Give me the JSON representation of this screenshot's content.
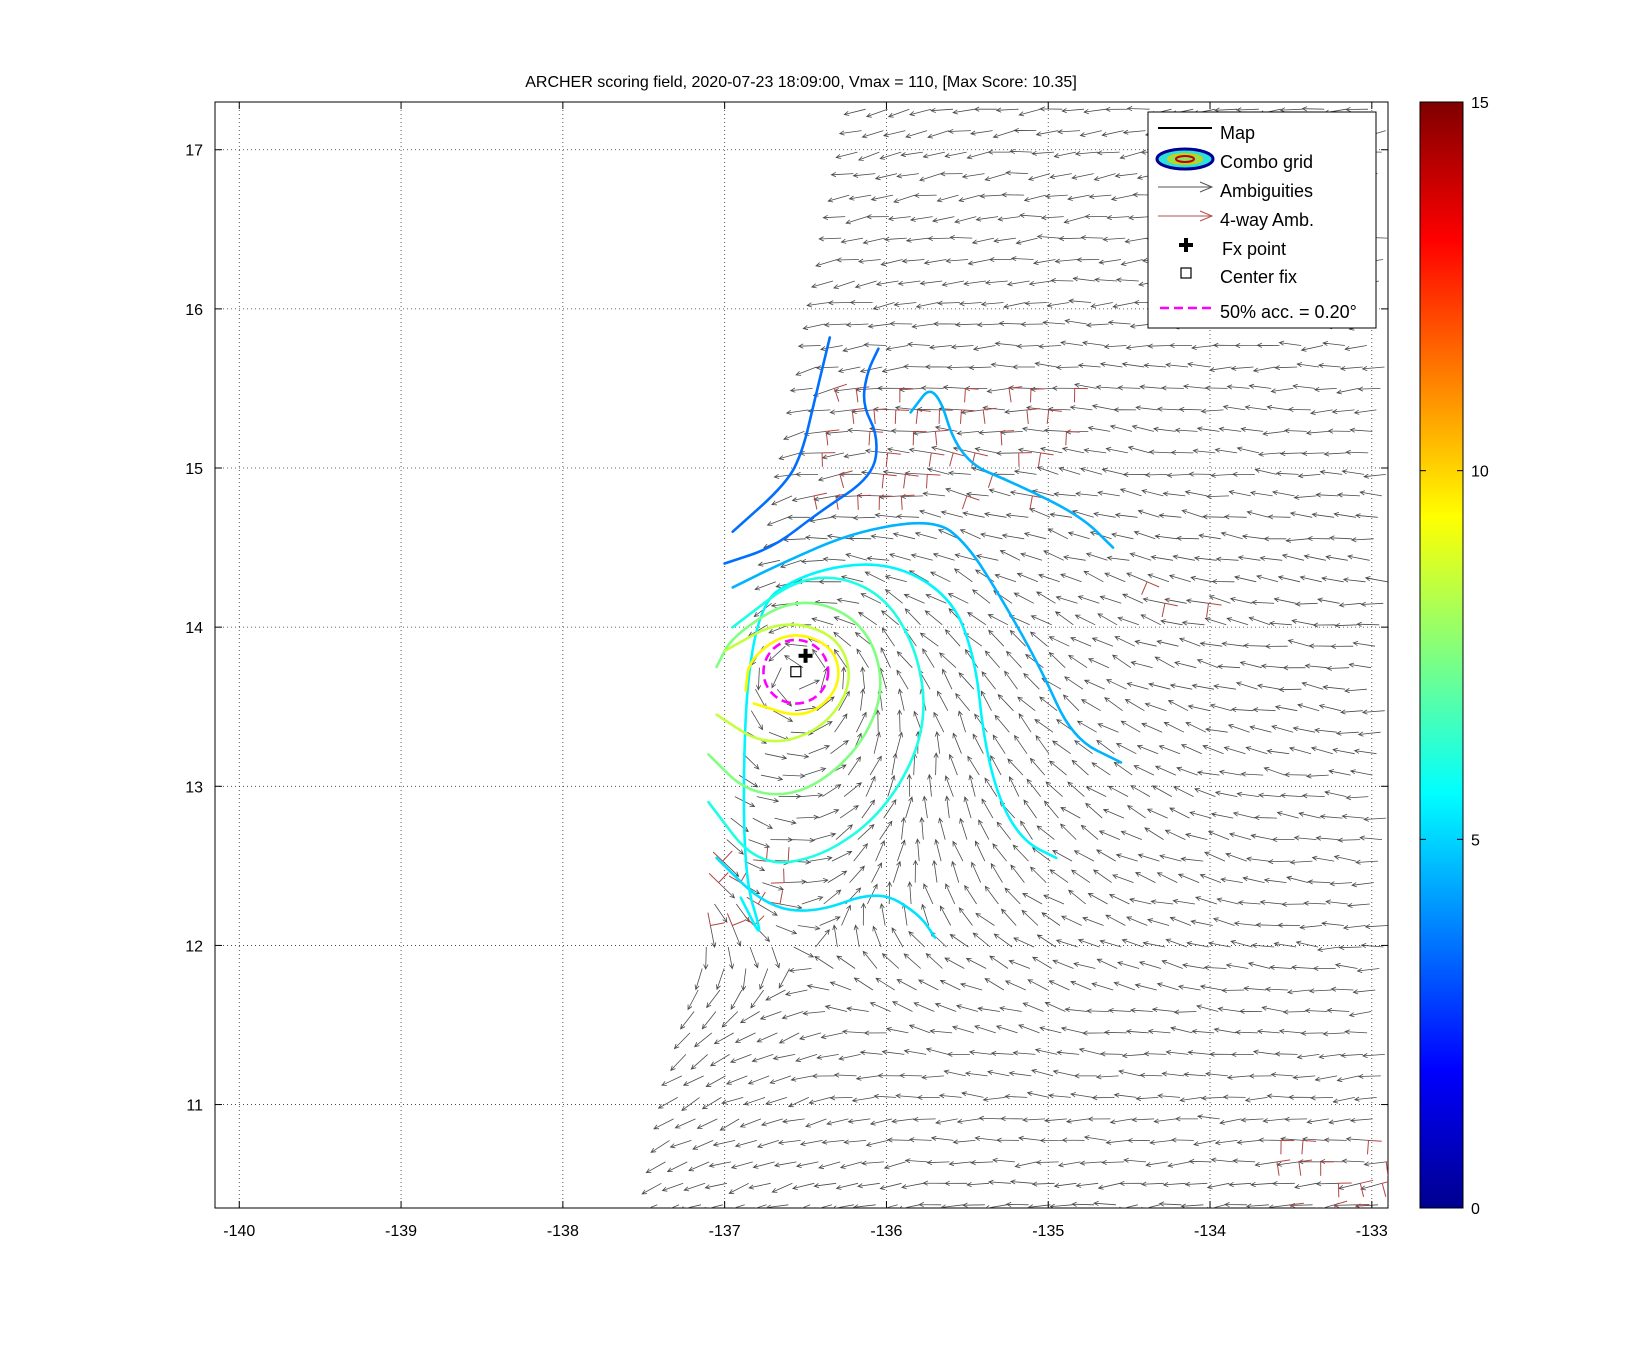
{
  "chart_data": {
    "type": "scatter",
    "title": "ARCHER scoring field, 2020-07-23 18:09:00, Vmax = 110, [Max Score: 10.35]",
    "xlabel": "",
    "ylabel": "",
    "xlim": [
      -140.15,
      -132.9
    ],
    "ylim": [
      10.35,
      17.3
    ],
    "xticks": [
      -140,
      -139,
      -138,
      -137,
      -136,
      -135,
      -134,
      -133
    ],
    "xtick_labels": [
      "-140",
      "-139",
      "-138",
      "-137",
      "-136",
      "-135",
      "-134",
      "-133"
    ],
    "yticks": [
      11,
      12,
      13,
      14,
      15,
      16,
      17
    ],
    "ytick_labels": [
      "11",
      "12",
      "13",
      "14",
      "15",
      "16",
      "17"
    ],
    "grid": true,
    "legend_position": "top-right",
    "legend": [
      {
        "label": "Map",
        "symbol": "line",
        "color": "#000000"
      },
      {
        "label": "Combo grid",
        "symbol": "ellipses",
        "color": "#000080"
      },
      {
        "label": "Ambiguities",
        "symbol": "arrow",
        "color": "#555555"
      },
      {
        "label": "4-way Amb.",
        "symbol": "arrow",
        "color": "#b05050"
      },
      {
        "label": "Fx point",
        "symbol": "plus",
        "color": "#000000"
      },
      {
        "label": "Center fix",
        "symbol": "square",
        "color": "#000000"
      },
      {
        "label": "50% acc. = 0.20°",
        "symbol": "dashed",
        "color": "#ff00ff"
      }
    ],
    "fx_point": [
      -136.5,
      13.82
    ],
    "center_fix": [
      -136.56,
      13.72
    ],
    "acc_50pct_radius_deg": 0.2,
    "colorbar": {
      "min": 0,
      "max": 15,
      "ticks": [
        0,
        5,
        10,
        15
      ],
      "tick_labels": [
        "0",
        "5",
        "10",
        "15"
      ],
      "colormap": "jet"
    },
    "swath_edge": [
      [
        -137.45,
        10.35
      ],
      [
        -136.15,
        17.3
      ]
    ],
    "vortex_center": [
      -136.55,
      13.7
    ],
    "contours": [
      {
        "level": 3.5,
        "points": [
          [
            -136.95,
            14.6
          ],
          [
            -136.62,
            14.9
          ],
          [
            -136.52,
            15.1
          ],
          [
            -136.45,
            15.4
          ],
          [
            -136.35,
            15.82
          ]
        ]
      },
      {
        "level": 3.5,
        "points": [
          [
            -137.0,
            14.4
          ],
          [
            -136.7,
            14.5
          ],
          [
            -136.42,
            14.72
          ],
          [
            -136.08,
            14.95
          ],
          [
            -136.05,
            15.2
          ],
          [
            -136.15,
            15.4
          ],
          [
            -136.12,
            15.6
          ],
          [
            -136.05,
            15.75
          ]
        ]
      },
      {
        "level": 4.5,
        "points": [
          [
            -136.95,
            14.25
          ],
          [
            -136.65,
            14.4
          ],
          [
            -136.2,
            14.6
          ],
          [
            -135.7,
            14.68
          ],
          [
            -135.5,
            14.52
          ],
          [
            -135.3,
            14.2
          ],
          [
            -135.05,
            13.75
          ],
          [
            -134.85,
            13.3
          ],
          [
            -134.55,
            13.15
          ]
        ]
      },
      {
        "level": 4.5,
        "points": [
          [
            -135.85,
            15.35
          ],
          [
            -135.7,
            15.55
          ],
          [
            -135.55,
            15.05
          ],
          [
            -135.2,
            14.9
          ],
          [
            -134.8,
            14.7
          ],
          [
            -134.6,
            14.5
          ]
        ]
      },
      {
        "level": 5.2,
        "points": [
          [
            -137.05,
            12.55
          ],
          [
            -136.75,
            12.25
          ],
          [
            -136.45,
            12.2
          ],
          [
            -136.05,
            12.35
          ],
          [
            -135.8,
            12.2
          ],
          [
            -135.7,
            12.05
          ]
        ]
      },
      {
        "level": 5.5,
        "points": [
          [
            -136.9,
            12.3
          ],
          [
            -136.75,
            12.0
          ],
          [
            -136.9,
            12.5
          ],
          [
            -136.85,
            14.1
          ],
          [
            -136.5,
            14.35
          ],
          [
            -136.0,
            14.42
          ],
          [
            -135.6,
            14.2
          ],
          [
            -135.45,
            13.8
          ],
          [
            -135.4,
            13.3
          ],
          [
            -135.3,
            12.9
          ],
          [
            -135.15,
            12.65
          ],
          [
            -134.95,
            12.55
          ]
        ]
      },
      {
        "level": 6.0,
        "points": [
          [
            -137.1,
            12.9
          ],
          [
            -136.8,
            12.5
          ],
          [
            -136.4,
            12.55
          ],
          [
            -136.0,
            12.85
          ],
          [
            -135.75,
            13.35
          ],
          [
            -135.8,
            13.85
          ],
          [
            -136.05,
            14.25
          ],
          [
            -136.5,
            14.35
          ],
          [
            -136.95,
            14.0
          ]
        ]
      },
      {
        "level": 7.5,
        "points": [
          [
            -137.1,
            13.2
          ],
          [
            -136.85,
            12.95
          ],
          [
            -136.5,
            12.95
          ],
          [
            -136.15,
            13.25
          ],
          [
            -136.0,
            13.65
          ],
          [
            -136.15,
            14.05
          ],
          [
            -136.55,
            14.2
          ],
          [
            -136.95,
            13.95
          ],
          [
            -137.05,
            13.75
          ]
        ]
      },
      {
        "level": 8.5,
        "points": [
          [
            -137.05,
            13.45
          ],
          [
            -136.75,
            13.25
          ],
          [
            -136.4,
            13.35
          ],
          [
            -136.2,
            13.65
          ],
          [
            -136.3,
            13.95
          ],
          [
            -136.65,
            14.05
          ],
          [
            -137.0,
            13.85
          ]
        ]
      },
      {
        "level": 9.5,
        "points": [
          [
            -136.82,
            13.52
          ],
          [
            -136.5,
            13.42
          ],
          [
            -136.28,
            13.62
          ],
          [
            -136.32,
            13.88
          ],
          [
            -136.6,
            13.98
          ],
          [
            -136.85,
            13.8
          ],
          [
            -136.87,
            13.6
          ]
        ]
      }
    ]
  }
}
